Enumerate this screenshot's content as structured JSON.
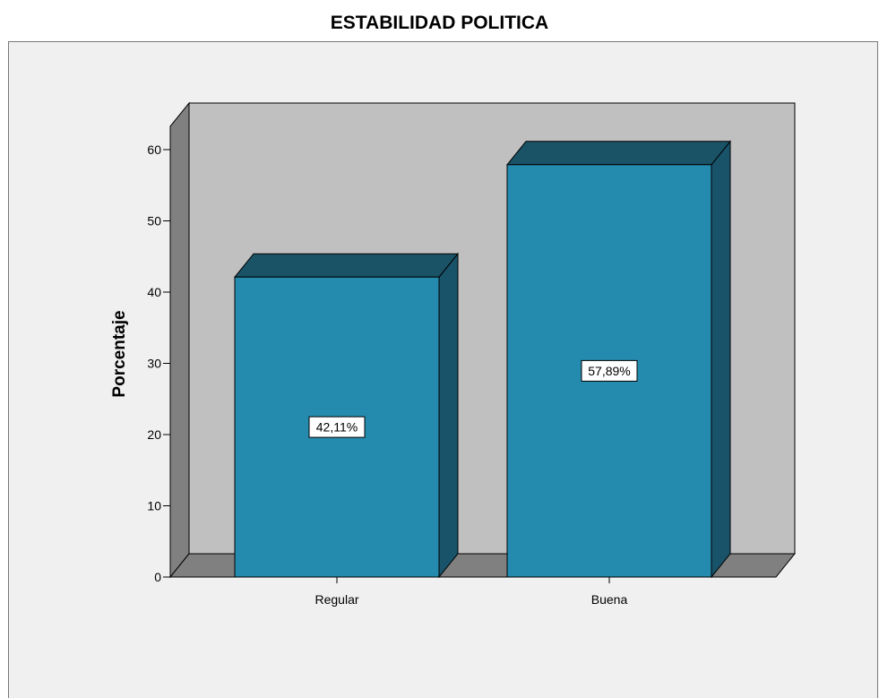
{
  "chart_data": {
    "type": "bar",
    "title": "ESTABILIDAD POLITICA",
    "xlabel": "",
    "ylabel": "Porcentaje",
    "categories": [
      "Regular",
      "Buena"
    ],
    "values": [
      42.11,
      57.89
    ],
    "data_labels": [
      "42,11%",
      "57,89%"
    ],
    "ylim": [
      0,
      60
    ],
    "yticks": [
      0,
      10,
      20,
      30,
      40,
      50,
      60
    ],
    "grid": false,
    "three_d": true,
    "colors": {
      "bar_front": "#258BAE",
      "bar_top": "#1A5266",
      "bar_side": "#18536A",
      "plot_back": "#C0C0C0",
      "plot_side": "#808080",
      "outer_bg": "#F0F0F0"
    }
  }
}
